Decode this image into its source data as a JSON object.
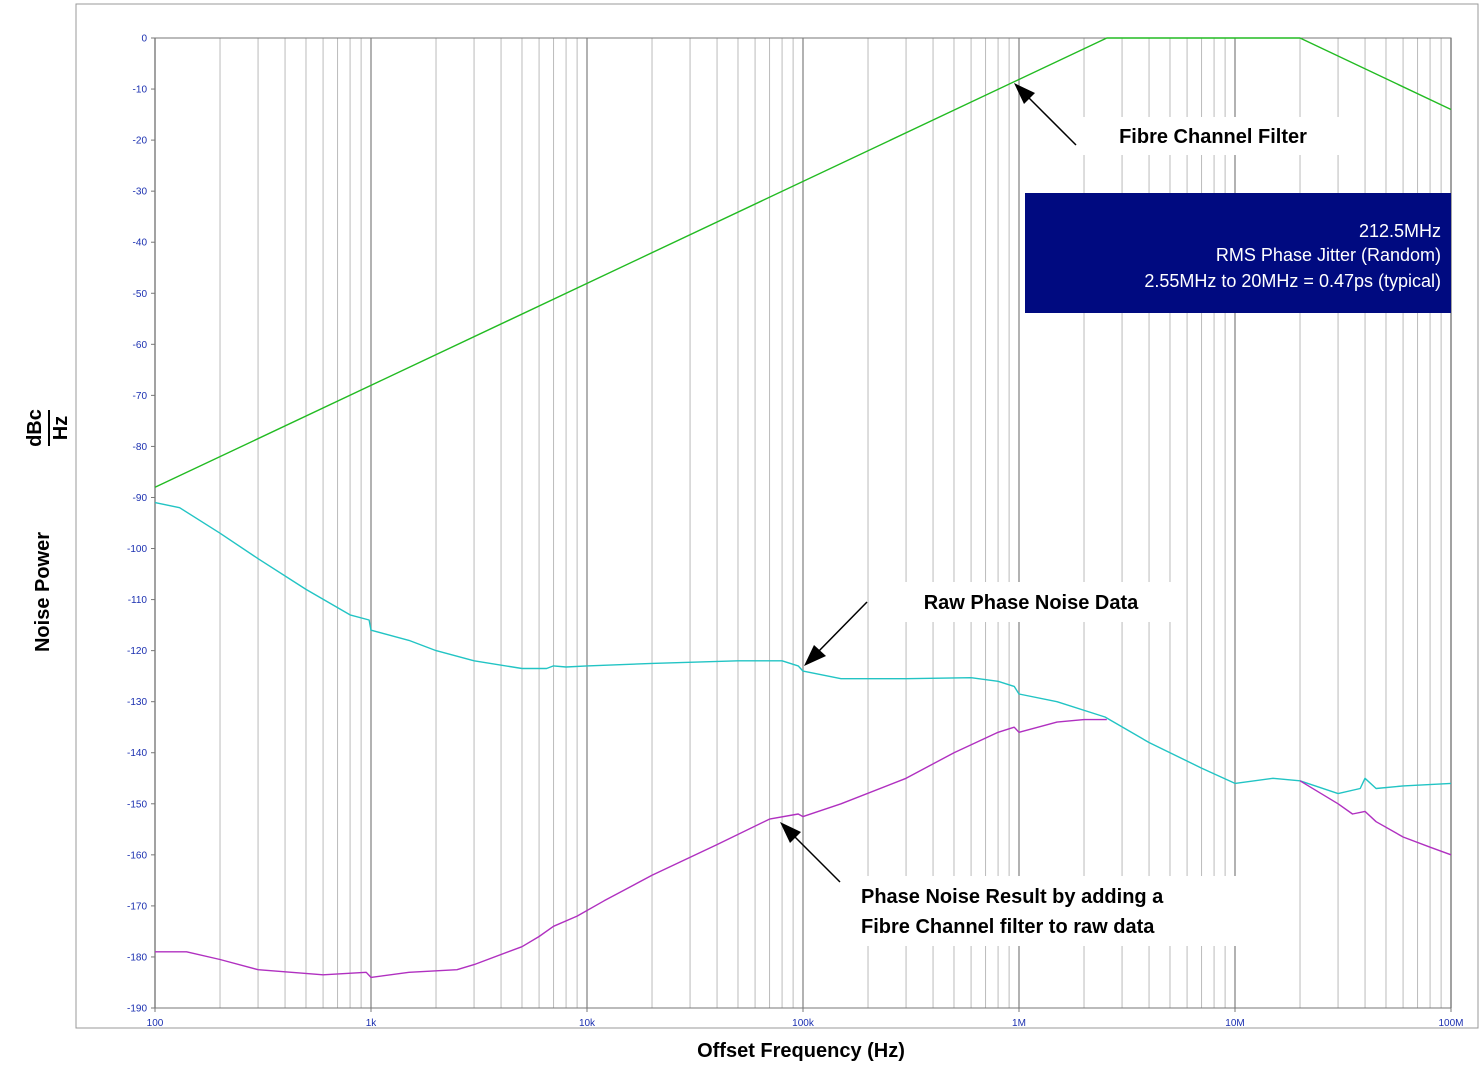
{
  "chart_data": {
    "type": "line",
    "xscale": "log",
    "xlim": [
      100,
      100000000
    ],
    "ylim": [
      -190,
      0
    ],
    "xlabel": "Offset Frequency (Hz)",
    "ylabel": "Noise Power",
    "ylabel_unit_top": "dBc",
    "ylabel_unit_bottom": "Hz",
    "grid": true,
    "x_ticks": [
      {
        "value": 100,
        "label": "100"
      },
      {
        "value": 1000,
        "label": "1k"
      },
      {
        "value": 10000,
        "label": "10k"
      },
      {
        "value": 100000,
        "label": "100k"
      },
      {
        "value": 1000000,
        "label": "1M"
      },
      {
        "value": 10000000,
        "label": "10M"
      },
      {
        "value": 100000000,
        "label": "100M"
      }
    ],
    "y_ticks": [
      {
        "value": 0,
        "label": "0"
      },
      {
        "value": -10,
        "label": "-10"
      },
      {
        "value": -20,
        "label": "-20"
      },
      {
        "value": -30,
        "label": "-30"
      },
      {
        "value": -40,
        "label": "-40"
      },
      {
        "value": -50,
        "label": "-50"
      },
      {
        "value": -60,
        "label": "-60"
      },
      {
        "value": -70,
        "label": "-70"
      },
      {
        "value": -80,
        "label": "-80"
      },
      {
        "value": -90,
        "label": "-90"
      },
      {
        "value": -100,
        "label": "-100"
      },
      {
        "value": -110,
        "label": "-110"
      },
      {
        "value": -120,
        "label": "-120"
      },
      {
        "value": -130,
        "label": "-130"
      },
      {
        "value": -140,
        "label": "-140"
      },
      {
        "value": -150,
        "label": "-150"
      },
      {
        "value": -160,
        "label": "-160"
      },
      {
        "value": -170,
        "label": "-170"
      },
      {
        "value": -180,
        "label": "-180"
      },
      {
        "value": -190,
        "label": "-190"
      }
    ],
    "series": [
      {
        "color": "#22bb22",
        "points": [
          [
            100,
            -88
          ],
          [
            2550000,
            0
          ],
          [
            20000000,
            0
          ],
          [
            100000000,
            -14
          ]
        ]
      },
      {
        "color": "#22c4c4",
        "points": [
          [
            100,
            -91
          ],
          [
            130,
            -92
          ],
          [
            200,
            -97
          ],
          [
            300,
            -102
          ],
          [
            500,
            -108
          ],
          [
            800,
            -113
          ],
          [
            980,
            -114
          ],
          [
            1000,
            -116
          ],
          [
            1500,
            -118
          ],
          [
            2000,
            -120
          ],
          [
            3000,
            -122
          ],
          [
            5000,
            -123.5
          ],
          [
            6500,
            -123.5
          ],
          [
            7000,
            -123
          ],
          [
            8000,
            -123.2
          ],
          [
            10000,
            -123
          ],
          [
            20000,
            -122.5
          ],
          [
            50000,
            -122
          ],
          [
            80000,
            -122
          ],
          [
            95000,
            -123
          ],
          [
            100000,
            -124
          ],
          [
            150000,
            -125.5
          ],
          [
            300000,
            -125.5
          ],
          [
            600000,
            -125.3
          ],
          [
            800000,
            -126
          ],
          [
            950000,
            -127
          ],
          [
            1000000,
            -128.5
          ],
          [
            1500000,
            -130
          ],
          [
            2500000,
            -133
          ],
          [
            4000000,
            -138
          ],
          [
            7000000,
            -143
          ],
          [
            10000000,
            -146
          ],
          [
            15000000,
            -145
          ],
          [
            20000000,
            -145.5
          ],
          [
            30000000,
            -148
          ],
          [
            38000000,
            -147
          ],
          [
            40000000,
            -145
          ],
          [
            45000000,
            -147
          ],
          [
            60000000,
            -146.5
          ],
          [
            100000000,
            -146
          ]
        ]
      },
      {
        "color": "#b030c0",
        "points": [
          [
            100,
            -179
          ],
          [
            140,
            -179
          ],
          [
            200,
            -180.5
          ],
          [
            300,
            -182.5
          ],
          [
            600,
            -183.5
          ],
          [
            950,
            -183
          ],
          [
            1000,
            -184
          ],
          [
            1500,
            -183
          ],
          [
            2500,
            -182.5
          ],
          [
            3000,
            -181.5
          ],
          [
            5000,
            -178
          ],
          [
            6000,
            -176
          ],
          [
            7000,
            -174
          ],
          [
            9000,
            -172
          ],
          [
            12000,
            -169
          ],
          [
            20000,
            -164
          ],
          [
            40000,
            -158
          ],
          [
            70000,
            -153
          ],
          [
            95000,
            -152
          ],
          [
            100000,
            -152.5
          ],
          [
            150000,
            -150
          ],
          [
            300000,
            -145
          ],
          [
            500000,
            -140
          ],
          [
            800000,
            -136
          ],
          [
            950000,
            -135
          ],
          [
            1000000,
            -136
          ],
          [
            1500000,
            -134
          ],
          [
            2000000,
            -133.5
          ],
          [
            2550000,
            -133.5
          ]
        ]
      },
      {
        "color": "#b030c0",
        "points": [
          [
            20000000,
            -145.5
          ],
          [
            30000000,
            -150
          ],
          [
            35000000,
            -152
          ],
          [
            40000000,
            -151.5
          ],
          [
            45000000,
            -153.5
          ],
          [
            60000000,
            -156.5
          ],
          [
            80000000,
            -158.5
          ],
          [
            100000000,
            -160
          ]
        ]
      }
    ],
    "annotations": [
      {
        "text": "Fibre Channel Filter",
        "target": [
          1000000,
          -9
        ]
      },
      {
        "text": "Raw Phase Noise Data",
        "target": [
          100000,
          -124.5
        ]
      },
      {
        "text": "Phase Noise Result by adding a",
        "text2": "Fibre Channel filter to raw data",
        "target": [
          80000,
          -153
        ]
      }
    ],
    "info_box": {
      "line1": "212.5MHz",
      "line2": "RMS Phase Jitter (Random)",
      "line3": "2.55MHz to 20MHz = 0.47ps (typical)",
      "background": "#000a80"
    },
    "tick_color": "#1a2fb0",
    "grid_color": "#bbbbbb"
  }
}
